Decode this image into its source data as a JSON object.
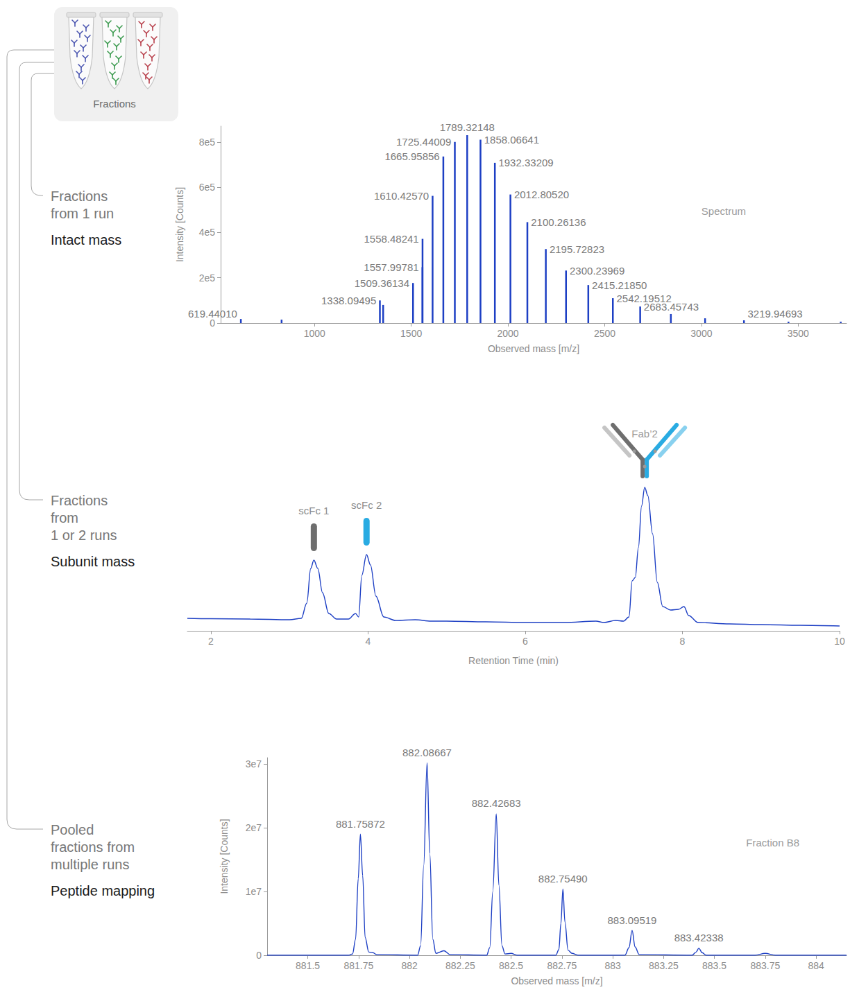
{
  "diagram": {
    "box_label": "Fractions",
    "steps": [
      {
        "source": [
          "Fractions",
          "from 1 run"
        ],
        "method": "Intact mass"
      },
      {
        "source": [
          "Fractions",
          "from",
          "1 or 2 runs"
        ],
        "method": "Subunit mass"
      },
      {
        "source": [
          "Pooled",
          "fractions from",
          "multiple runs"
        ],
        "method": "Peptide mapping"
      }
    ]
  },
  "chart_data": [
    {
      "type": "bar",
      "title": "Spectrum",
      "x_label": "Observed mass [m/z]",
      "y_label": "Intensity [Counts]",
      "x": [
        619.4401,
        830,
        1338.09495,
        1355,
        1509.36134,
        1557.99781,
        1558.48241,
        1610.4257,
        1665.95856,
        1725.44009,
        1789.32148,
        1858.06641,
        1932.33209,
        2012.8052,
        2100.26136,
        2195.72823,
        2300.23969,
        2415.2185,
        2542.19512,
        2683.45743,
        2842,
        3019,
        3219.94693,
        3450,
        3720
      ],
      "values": [
        18000,
        15000,
        100000,
        80000,
        177000,
        247000,
        372000,
        562000,
        736000,
        800000,
        830000,
        810000,
        708000,
        568000,
        446000,
        327000,
        232000,
        168000,
        110000,
        73000,
        40000,
        21000,
        12000,
        6000,
        6000
      ],
      "labels": [
        "619.44010",
        null,
        "1338.09495",
        null,
        "1509.36134",
        "1557.99781",
        "1558.48241",
        "1610.42570",
        "1665.95856",
        "1725.44009",
        "1789.32148",
        "1858.06641",
        "1932.33209",
        "2012.80520",
        "2100.26136",
        "2195.72823",
        "2300.23969",
        "2415.21850",
        "2542.19512",
        "2683.45743",
        null,
        null,
        "3219.94693",
        null,
        null
      ],
      "color": "#1d3fc4",
      "xlim": [
        515,
        3750
      ],
      "xticks": [
        1000,
        1500,
        2000,
        2500,
        3000,
        3500
      ],
      "ylim": [
        0,
        870000
      ],
      "yticks": [
        0,
        {
          "value": 200000,
          "label": "2e5"
        },
        {
          "value": 400000,
          "label": "4e5"
        },
        {
          "value": 600000,
          "label": "6e5"
        },
        {
          "value": 800000,
          "label": "8e5"
        }
      ],
      "grid": false
    },
    {
      "type": "line",
      "x_label": "Retention Time (min)",
      "x": [
        1.7,
        2.0,
        2.5,
        3.0,
        3.15,
        3.22,
        3.27,
        3.31,
        3.36,
        3.42,
        3.5,
        3.6,
        3.75,
        3.84,
        3.88,
        3.92,
        3.98,
        4.03,
        4.1,
        4.2,
        4.35,
        4.6,
        4.8,
        5.0,
        5.5,
        6.0,
        6.5,
        6.9,
        7.0,
        7.15,
        7.25,
        7.32,
        7.36,
        7.4,
        7.44,
        7.48,
        7.52,
        7.56,
        7.62,
        7.68,
        7.75,
        7.85,
        7.95,
        8.02,
        8.08,
        8.2,
        8.6,
        9.0,
        9.5,
        10.0
      ],
      "values": [
        18,
        17.5,
        17,
        16,
        18,
        40,
        90,
        102,
        90,
        55,
        25,
        17,
        17,
        25,
        20,
        80,
        110,
        95,
        50,
        20,
        15,
        16,
        14,
        14,
        13,
        12,
        12,
        14,
        12,
        15,
        14,
        20,
        72,
        77,
        120,
        180,
        207,
        195,
        140,
        70,
        35,
        30,
        31,
        35,
        22,
        12,
        10,
        9,
        8,
        7
      ],
      "color": "#1d3fc4",
      "xlim": [
        1.7,
        10
      ],
      "xticks": [
        2,
        4,
        6,
        8,
        10
      ],
      "ylim": [
        0,
        220
      ],
      "tick_labels": "x",
      "grid": false,
      "annotations": [
        {
          "text": "scFc 1",
          "x": 3.31,
          "color": "#6e6e6e"
        },
        {
          "text": "scFc 2",
          "x": 3.98,
          "color": "#29abe2"
        },
        {
          "text": "Fab’2",
          "x": 7.52,
          "colors": [
            "#6e6e6e",
            "#29abe2"
          ]
        }
      ]
    },
    {
      "type": "line",
      "title": "Fraction B8",
      "x_label": "Observed mass [m/z]",
      "y_label": "Intensity [Counts]",
      "x": [
        881.3,
        881.7,
        881.72,
        881.735,
        881.748,
        881.75872,
        881.77,
        881.782,
        881.8,
        881.82,
        881.84,
        882.04,
        882.055,
        882.07,
        882.08667,
        882.1,
        882.115,
        882.13,
        882.17,
        882.2,
        882.38,
        882.395,
        882.41,
        882.42683,
        882.44,
        882.455,
        882.47,
        882.5,
        882.53,
        882.72,
        882.735,
        882.745,
        882.7549,
        882.765,
        882.78,
        882.8,
        882.83,
        883.06,
        883.08,
        883.09519,
        883.11,
        883.13,
        883.39,
        883.41,
        883.42338,
        883.44,
        883.46,
        883.7,
        883.75,
        883.8,
        884.15
      ],
      "values": [
        0,
        0,
        200000,
        2500000,
        12000000,
        19000000,
        12500000,
        2800000,
        500000,
        400000,
        100000,
        0,
        1500000,
        14000000,
        30200000,
        16000000,
        2500000,
        300000,
        700000,
        100000,
        0,
        1200000,
        10000000,
        22200000,
        11000000,
        1500000,
        200000,
        300000,
        0,
        0,
        900000,
        5000000,
        10400000,
        5200000,
        800000,
        300000,
        0,
        0,
        1200000,
        3900000,
        1300000,
        100000,
        0,
        500000,
        1100000,
        400000,
        0,
        0,
        300000,
        0,
        0
      ],
      "color": "#1d3fc4",
      "xlim": [
        881.3,
        884.15
      ],
      "xticks": [
        881.5,
        881.75,
        882,
        882.25,
        882.5,
        882.75,
        883,
        883.25,
        883.5,
        883.75,
        884
      ],
      "ylim": [
        0,
        31000000
      ],
      "yticks": [
        0,
        {
          "value": 10000000,
          "label": "1e7"
        },
        {
          "value": 20000000,
          "label": "2e7"
        },
        {
          "value": 30000000,
          "label": "3e7"
        }
      ],
      "grid": false,
      "annotations": [
        {
          "text": "881.75872",
          "x": 881.75872
        },
        {
          "text": "882.08667",
          "x": 882.08667
        },
        {
          "text": "882.42683",
          "x": 882.42683
        },
        {
          "text": "882.75490",
          "x": 882.7549
        },
        {
          "text": "883.09519",
          "x": 883.09519
        },
        {
          "text": "883.42338",
          "x": 883.42338
        }
      ]
    }
  ]
}
